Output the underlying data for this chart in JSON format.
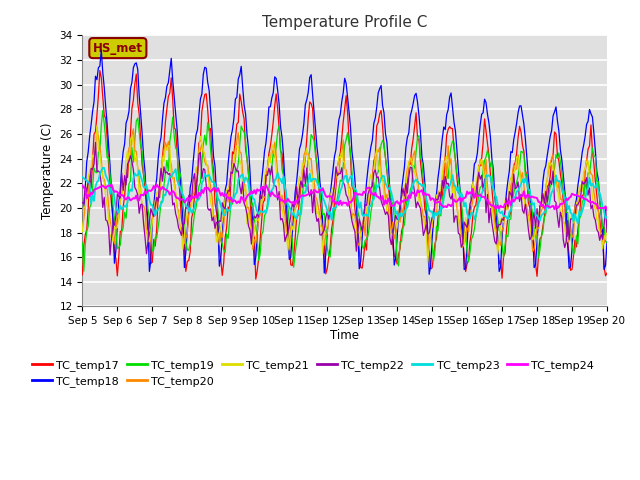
{
  "title": "Temperature Profile C",
  "xlabel": "Time",
  "ylabel": "Temperature (C)",
  "ylim": [
    12,
    34
  ],
  "series_colors": {
    "TC_temp17": "#ff0000",
    "TC_temp18": "#0000ff",
    "TC_temp19": "#00dd00",
    "TC_temp20": "#ff8800",
    "TC_temp21": "#dddd00",
    "TC_temp22": "#9900aa",
    "TC_temp23": "#00dddd",
    "TC_temp24": "#ff00ff"
  },
  "annotation_text": "HS_met",
  "annotation_color": "#8B0000",
  "annotation_bg": "#cccc00",
  "background_color": "#e0e0e0",
  "grid_color": "#ffffff",
  "title_fontsize": 11,
  "tick_fontsize": 7.5,
  "label_fontsize": 8.5,
  "legend_fontsize": 8
}
